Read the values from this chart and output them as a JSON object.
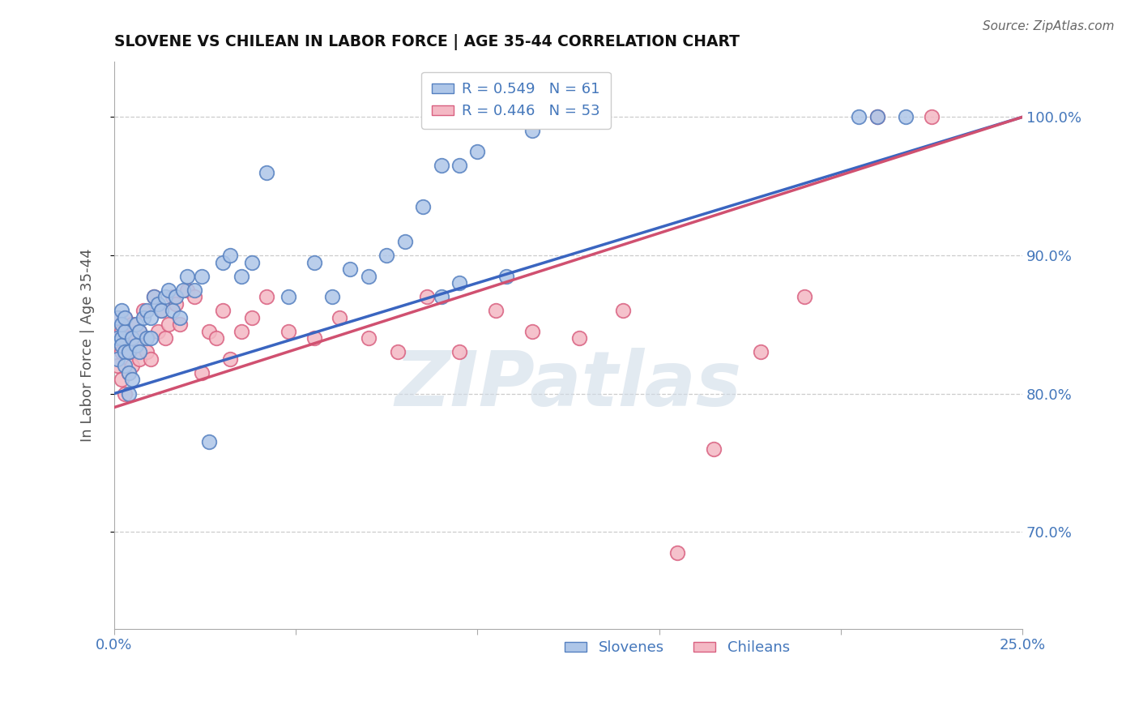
{
  "title": "SLOVENE VS CHILEAN IN LABOR FORCE | AGE 35-44 CORRELATION CHART",
  "source": "Source: ZipAtlas.com",
  "ylabel": "In Labor Force | Age 35-44",
  "xlim": [
    0.0,
    0.25
  ],
  "ylim": [
    0.63,
    1.04
  ],
  "xticks": [
    0.0,
    0.05,
    0.1,
    0.15,
    0.2,
    0.25
  ],
  "xticklabels": [
    "0.0%",
    "",
    "",
    "",
    "",
    "25.0%"
  ],
  "yticks": [
    0.7,
    0.8,
    0.9,
    1.0
  ],
  "yticklabels": [
    "70.0%",
    "80.0%",
    "90.0%",
    "100.0%"
  ],
  "R_blue": 0.549,
  "N_blue": 61,
  "R_pink": 0.446,
  "N_pink": 53,
  "blue_fill": "#aec6e8",
  "blue_edge": "#5580c0",
  "pink_fill": "#f4b8c4",
  "pink_edge": "#d96080",
  "blue_line": "#3a65c0",
  "pink_line": "#d05070",
  "grid_color": "#cccccc",
  "tick_color": "#4477bb",
  "title_color": "#111111",
  "source_color": "#666666",
  "slovene_x": [
    0.001,
    0.001,
    0.001,
    0.002,
    0.002,
    0.002,
    0.002,
    0.003,
    0.003,
    0.003,
    0.003,
    0.004,
    0.004,
    0.004,
    0.005,
    0.005,
    0.006,
    0.006,
    0.007,
    0.007,
    0.008,
    0.009,
    0.009,
    0.01,
    0.01,
    0.011,
    0.012,
    0.013,
    0.014,
    0.015,
    0.016,
    0.017,
    0.018,
    0.019,
    0.02,
    0.022,
    0.024,
    0.026,
    0.03,
    0.032,
    0.035,
    0.038,
    0.042,
    0.048,
    0.055,
    0.06,
    0.065,
    0.07,
    0.075,
    0.08,
    0.085,
    0.09,
    0.095,
    0.1,
    0.108,
    0.115,
    0.09,
    0.095,
    0.205,
    0.21,
    0.218
  ],
  "slovene_y": [
    0.84,
    0.855,
    0.825,
    0.84,
    0.86,
    0.835,
    0.85,
    0.83,
    0.845,
    0.82,
    0.855,
    0.8,
    0.83,
    0.815,
    0.84,
    0.81,
    0.835,
    0.85,
    0.845,
    0.83,
    0.855,
    0.86,
    0.84,
    0.855,
    0.84,
    0.87,
    0.865,
    0.86,
    0.87,
    0.875,
    0.86,
    0.87,
    0.855,
    0.875,
    0.885,
    0.875,
    0.885,
    0.765,
    0.895,
    0.9,
    0.885,
    0.895,
    0.96,
    0.87,
    0.895,
    0.87,
    0.89,
    0.885,
    0.9,
    0.91,
    0.935,
    0.965,
    0.965,
    0.975,
    0.885,
    0.99,
    0.87,
    0.88,
    1.0,
    1.0,
    1.0
  ],
  "chilean_x": [
    0.001,
    0.001,
    0.002,
    0.002,
    0.002,
    0.003,
    0.003,
    0.003,
    0.004,
    0.004,
    0.005,
    0.005,
    0.006,
    0.007,
    0.007,
    0.008,
    0.009,
    0.01,
    0.011,
    0.012,
    0.013,
    0.014,
    0.015,
    0.016,
    0.017,
    0.018,
    0.02,
    0.022,
    0.024,
    0.026,
    0.028,
    0.03,
    0.032,
    0.035,
    0.038,
    0.042,
    0.048,
    0.055,
    0.062,
    0.07,
    0.078,
    0.086,
    0.095,
    0.105,
    0.115,
    0.128,
    0.14,
    0.155,
    0.165,
    0.178,
    0.19,
    0.21,
    0.225
  ],
  "chilean_y": [
    0.855,
    0.82,
    0.845,
    0.83,
    0.81,
    0.84,
    0.855,
    0.8,
    0.83,
    0.815,
    0.85,
    0.82,
    0.84,
    0.845,
    0.825,
    0.86,
    0.83,
    0.825,
    0.87,
    0.845,
    0.86,
    0.84,
    0.85,
    0.87,
    0.865,
    0.85,
    0.875,
    0.87,
    0.815,
    0.845,
    0.84,
    0.86,
    0.825,
    0.845,
    0.855,
    0.87,
    0.845,
    0.84,
    0.855,
    0.84,
    0.83,
    0.87,
    0.83,
    0.86,
    0.845,
    0.84,
    0.86,
    0.685,
    0.76,
    0.83,
    0.87,
    1.0,
    1.0
  ]
}
